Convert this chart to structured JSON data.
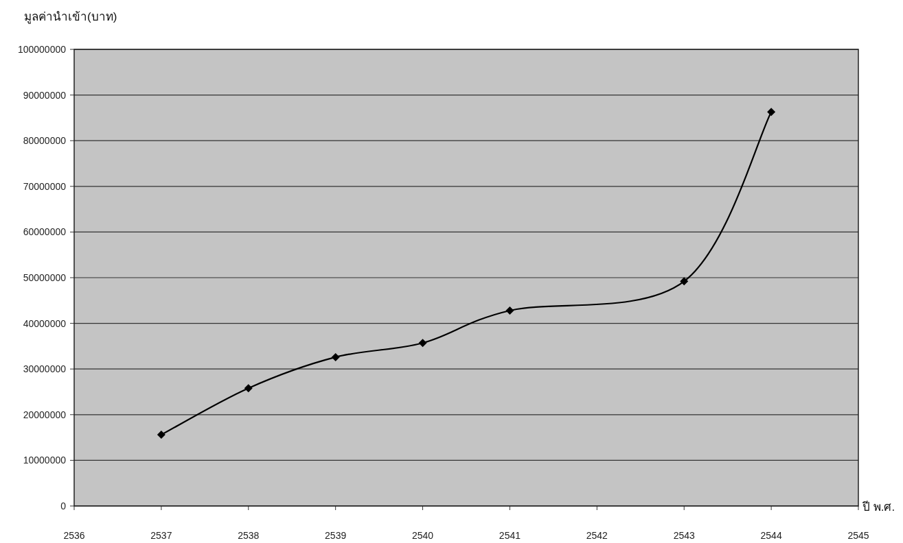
{
  "chart_data": {
    "type": "line",
    "ylabel": "มูลค่านำเข้า(บาท)",
    "xlabel": "ปี พ.ศ.",
    "x": [
      2537,
      2538,
      2539,
      2540,
      2541,
      2543,
      2544
    ],
    "series": [
      {
        "color": "#000000",
        "values": [
          15600000,
          25800000,
          32600000,
          35700000,
          42800000,
          49200000,
          86300000
        ]
      }
    ],
    "xlim": [
      2536,
      2545
    ],
    "xticks": [
      2536,
      2537,
      2538,
      2539,
      2540,
      2541,
      2542,
      2543,
      2544,
      2545
    ],
    "ylim": [
      0,
      100000000
    ],
    "yticks": [
      0,
      10000000,
      20000000,
      30000000,
      40000000,
      50000000,
      60000000,
      70000000,
      80000000,
      90000000,
      100000000
    ],
    "grid": "y",
    "marker": "diamond"
  }
}
